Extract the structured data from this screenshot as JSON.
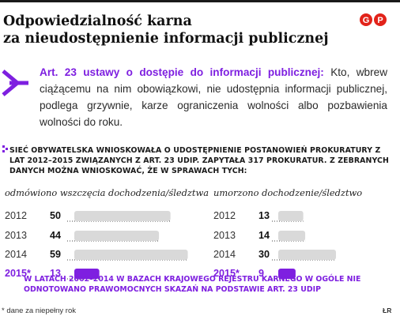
{
  "title_line1": "Odpowiedzialność karna",
  "title_line2": "za nieudostępnienie informacji publicznej",
  "logo_icon": "gp-logo-icon",
  "arrow_icon": "arrow-right-icon",
  "article": {
    "lead": "Art. 23 ustawy o dostępie do informacji publicznej:",
    "body": " Kto, wbrew ciążącemu na nim obowiązkowi, nie udostępnia informacji publicznej, podlega grzywnie, karze ograniczenia wolności albo pozbawienia wolności do roku."
  },
  "intro_text": "Sieć Obywatelska wnioskowała o udostępnienie postanowień prokuratury z lat 2012–2015 związanych z art. 23 udip. Zapytała 317 prokuratur. Z zebranych danych można wnioskować, że w sprawach tych:",
  "colors": {
    "accent": "#7e1fe0",
    "bar": "#d9d9d9",
    "text": "#1a1a1a"
  },
  "chart_data": [
    {
      "type": "bar",
      "title": "odmówiono wszczęcia dochodzenia/śledztwa",
      "categories": [
        "2012",
        "2013",
        "2014",
        "2015*"
      ],
      "values": [
        50,
        44,
        59,
        13
      ],
      "highlight": "2015*",
      "grid": false
    },
    {
      "type": "bar",
      "title": "umorzono dochodzenie/śledztwo",
      "categories": [
        "2012",
        "2013",
        "2014",
        "2015*"
      ],
      "values": [
        13,
        14,
        30,
        9
      ],
      "highlight": "2015*",
      "grid": false
    }
  ],
  "footer_text": "W latach 2002–2014 w bazach Krajowego Rejestru Karnego w ogóle nie odnotowano prawomocnych skazań na podstawie art. 23 udip",
  "footnote": "* dane za niepełny rok",
  "credit": "ŁR"
}
